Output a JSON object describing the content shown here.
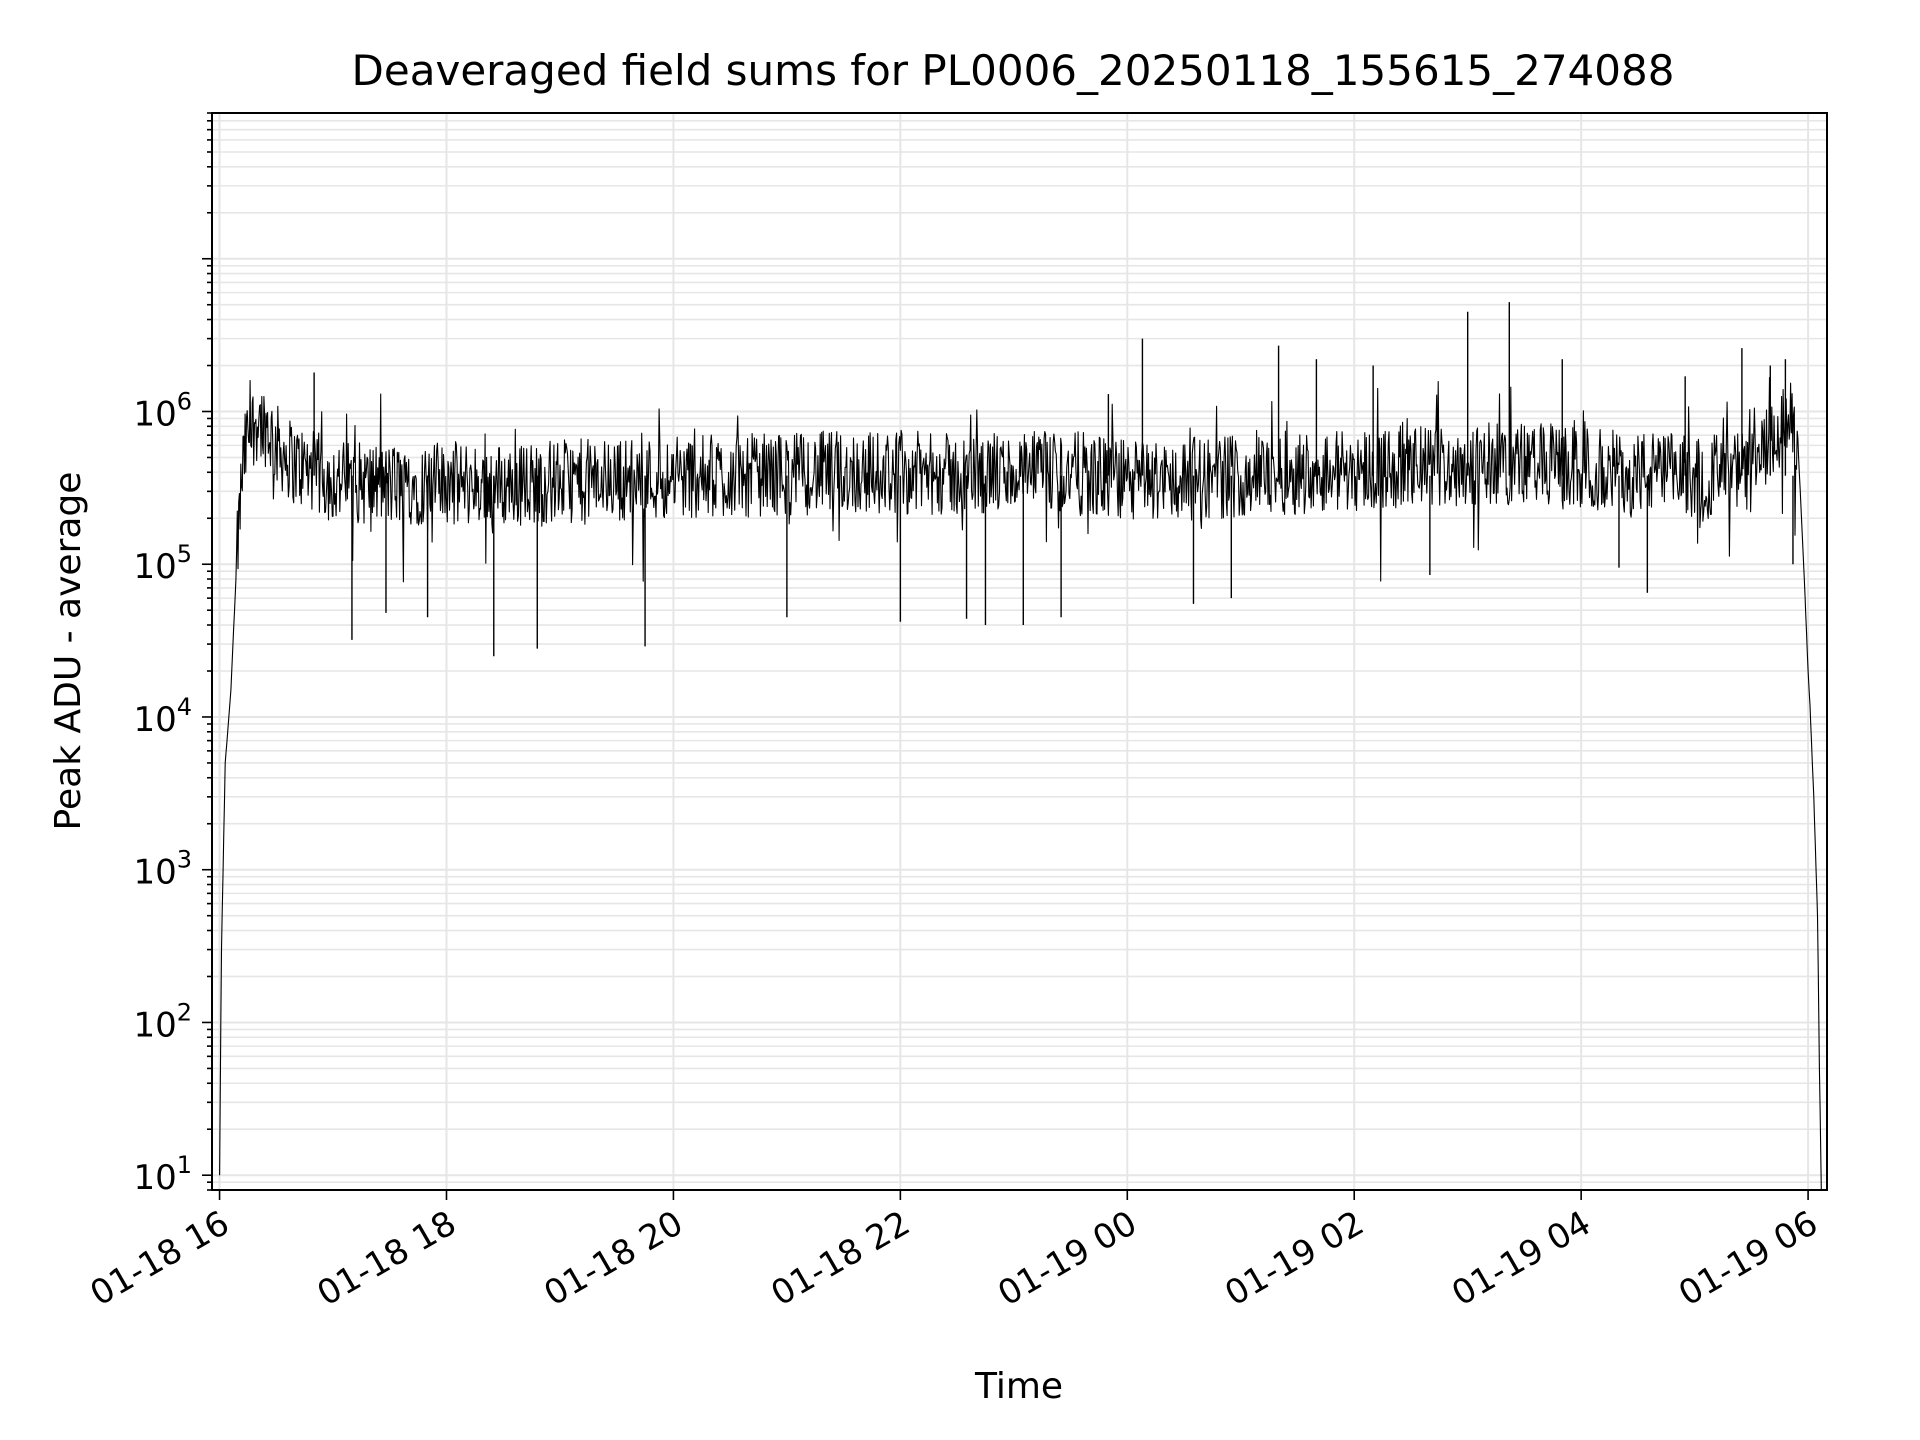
{
  "chart_data": {
    "type": "line",
    "title": "Deaveraged field sums for PL0006_20250118_155615_274088",
    "xlabel": "Time",
    "ylabel": "Peak ADU - average",
    "y_scale": "log",
    "ylim": [
      8,
      90000000
    ],
    "xlim": [
      "01-18 15:56",
      "01-19 06:10"
    ],
    "grid": true,
    "line_color": "#000000",
    "grid_color": "#e6e6e6",
    "x_ticks": [
      "01-18 16",
      "01-18 18",
      "01-18 20",
      "01-18 22",
      "01-19 00",
      "01-19 02",
      "01-19 04",
      "01-19 06"
    ],
    "y_ticks": [
      {
        "value": 10,
        "base": "10",
        "exp": "1"
      },
      {
        "value": 100,
        "base": "10",
        "exp": "2"
      },
      {
        "value": 1000,
        "base": "10",
        "exp": "3"
      },
      {
        "value": 10000,
        "base": "10",
        "exp": "4"
      },
      {
        "value": 100000,
        "base": "10",
        "exp": "5"
      },
      {
        "value": 1000000,
        "base": "10",
        "exp": "6"
      }
    ],
    "series": [
      {
        "x": [
          "01-18 16:00",
          "01-18 16:01",
          "01-18 16:03",
          "01-18 16:06",
          "01-18 16:09",
          "01-18 16:12",
          "01-18 16:15",
          "01-18 16:20",
          "01-18 16:25",
          "01-18 16:30",
          "01-18 16:40",
          "01-18 16:50",
          "01-18 17:00",
          "01-18 17:30",
          "01-18 18:00",
          "01-18 18:30",
          "01-18 19:00",
          "01-18 19:30",
          "01-18 20:00",
          "01-18 20:30",
          "01-18 21:00",
          "01-18 21:30",
          "01-18 22:00",
          "01-18 22:30",
          "01-18 23:00",
          "01-18 23:30",
          "01-19 00:00",
          "01-19 00:30",
          "01-19 01:00",
          "01-19 01:30",
          "01-19 02:00",
          "01-19 02:30",
          "01-19 03:00",
          "01-19 03:30",
          "01-19 04:00",
          "01-19 04:30",
          "01-19 05:00",
          "01-19 05:30",
          "01-19 05:50",
          "01-19 05:55",
          "01-19 05:58",
          "01-19 06:00",
          "01-19 06:01",
          "01-19 06:03",
          "01-19 06:05",
          "01-19 06:06",
          "01-19 06:07"
        ],
        "y": [
          10,
          300,
          5000,
          15000,
          100000,
          400000,
          700000,
          900000,
          800000,
          600000,
          450000,
          400000,
          350000,
          330000,
          340000,
          330000,
          350000,
          360000,
          370000,
          380000,
          390000,
          400000,
          400000,
          380000,
          390000,
          400000,
          350000,
          360000,
          380000,
          400000,
          420000,
          430000,
          450000,
          460000,
          420000,
          400000,
          380000,
          400000,
          900000,
          500000,
          80000,
          20000,
          12000,
          3000,
          500,
          50,
          8
        ]
      }
    ],
    "spikes": [
      {
        "x": "01-18 16:50",
        "y": 1800000
      },
      {
        "x": "01-18 17:10",
        "y": 32000
      },
      {
        "x": "01-18 17:28",
        "y": 48000
      },
      {
        "x": "01-18 17:50",
        "y": 45000
      },
      {
        "x": "01-18 18:25",
        "y": 25000
      },
      {
        "x": "01-18 18:48",
        "y": 28000
      },
      {
        "x": "01-18 19:45",
        "y": 29000
      },
      {
        "x": "01-18 21:00",
        "y": 45000
      },
      {
        "x": "01-18 22:00",
        "y": 42000
      },
      {
        "x": "01-18 22:35",
        "y": 44000
      },
      {
        "x": "01-18 22:45",
        "y": 40000
      },
      {
        "x": "01-18 23:05",
        "y": 40000
      },
      {
        "x": "01-18 23:25",
        "y": 45000
      },
      {
        "x": "01-18 23:50",
        "y": 1300000
      },
      {
        "x": "01-19 00:08",
        "y": 3000000
      },
      {
        "x": "01-19 00:35",
        "y": 55000
      },
      {
        "x": "01-19 00:55",
        "y": 60000
      },
      {
        "x": "01-19 01:20",
        "y": 2700000
      },
      {
        "x": "01-19 01:40",
        "y": 2200000
      },
      {
        "x": "01-19 02:10",
        "y": 2000000
      },
      {
        "x": "01-19 02:40",
        "y": 85000
      },
      {
        "x": "01-19 03:00",
        "y": 4500000
      },
      {
        "x": "01-19 03:22",
        "y": 5200000
      },
      {
        "x": "01-19 03:50",
        "y": 2200000
      },
      {
        "x": "01-19 04:20",
        "y": 95000
      },
      {
        "x": "01-19 04:35",
        "y": 65000
      },
      {
        "x": "01-19 04:55",
        "y": 1700000
      },
      {
        "x": "01-19 05:25",
        "y": 2600000
      },
      {
        "x": "01-19 05:40",
        "y": 2000000
      },
      {
        "x": "01-19 05:48",
        "y": 2200000
      },
      {
        "x": "01-19 05:52",
        "y": 100000
      }
    ]
  }
}
